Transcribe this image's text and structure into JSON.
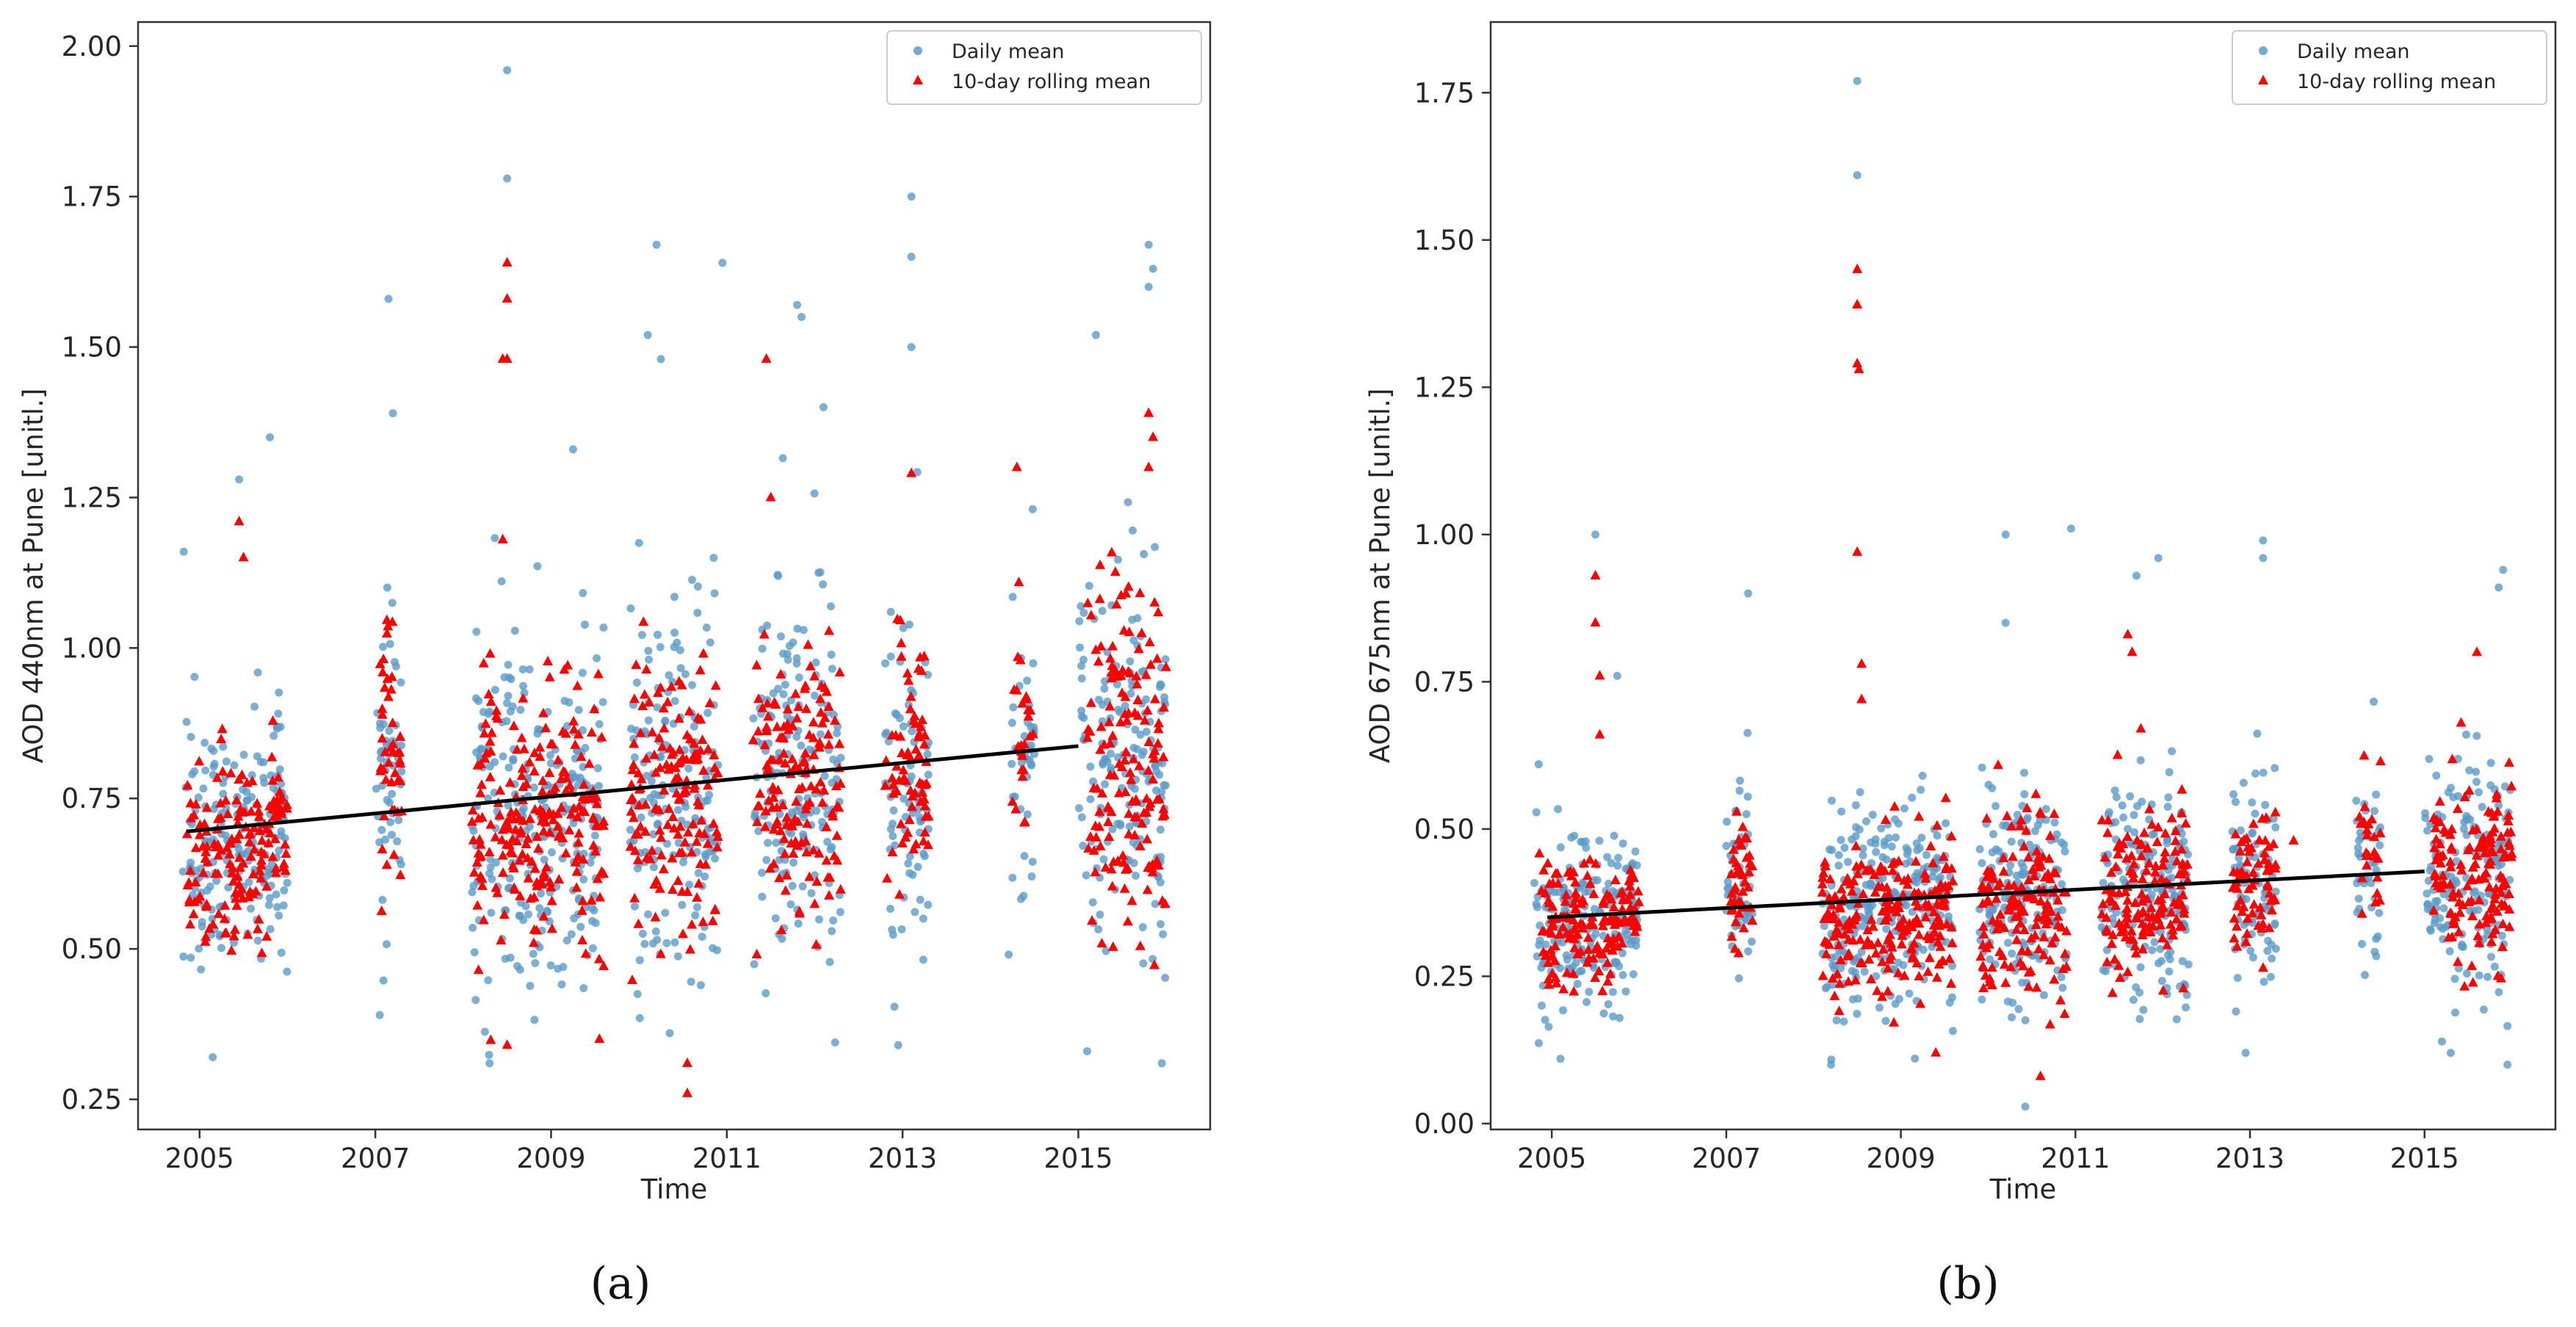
{
  "colors": {
    "daily_mean": "#5b9bc8",
    "rolling_mean": "#ff0000",
    "trend": "#000000",
    "axes": "#333333"
  },
  "chart_data": [
    {
      "type": "scatter",
      "panel_label": "(a)",
      "xlabel": "Time",
      "ylabel": "AOD 440nm at Pune [unitl.]",
      "xlim": [
        2004.3,
        2016.5
      ],
      "ylim": [
        0.2,
        2.04
      ],
      "xticks": [
        2005,
        2007,
        2009,
        2011,
        2013,
        2015
      ],
      "yticks": [
        0.25,
        0.5,
        0.75,
        1.0,
        1.25,
        1.5,
        1.75,
        2.0
      ],
      "ytick_labels": [
        "0.25",
        "0.50",
        "0.75",
        "1.00",
        "1.25",
        "1.50",
        "1.75",
        "2.00"
      ],
      "legend": {
        "position": "top-right",
        "entries": [
          "Daily mean",
          "10-day rolling mean"
        ]
      },
      "trend_line": {
        "x": [
          2004.85,
          2015.0
        ],
        "y": [
          0.695,
          0.837
        ]
      },
      "series": [
        {
          "name": "Daily mean",
          "marker": "circle",
          "clusters": [
            {
              "x": [
                2004.8,
                2005.8
              ],
              "mean": 0.68,
              "spread": 0.14,
              "n": 150
            },
            {
              "x": [
                2005.8,
                2006.0
              ],
              "mean": 0.7,
              "spread": 0.15,
              "n": 40
            },
            {
              "x": [
                2007.0,
                2007.3
              ],
              "mean": 0.82,
              "spread": 0.18,
              "n": 50
            },
            {
              "x": [
                2008.1,
                2008.6
              ],
              "mean": 0.72,
              "spread": 0.2,
              "n": 80
            },
            {
              "x": [
                2008.6,
                2009.6
              ],
              "mean": 0.72,
              "spread": 0.2,
              "n": 170
            },
            {
              "x": [
                2009.9,
                2010.9
              ],
              "mean": 0.75,
              "spread": 0.2,
              "n": 170
            },
            {
              "x": [
                2011.3,
                2012.3
              ],
              "mean": 0.78,
              "spread": 0.2,
              "n": 170
            },
            {
              "x": [
                2012.8,
                2013.3
              ],
              "mean": 0.78,
              "spread": 0.2,
              "n": 80
            },
            {
              "x": [
                2014.2,
                2014.5
              ],
              "mean": 0.82,
              "spread": 0.18,
              "n": 40
            },
            {
              "x": [
                2015.0,
                2016.0
              ],
              "mean": 0.8,
              "spread": 0.22,
              "n": 170
            }
          ],
          "outliers": [
            {
              "x": 2004.82,
              "y": 1.16
            },
            {
              "x": 2005.45,
              "y": 1.28
            },
            {
              "x": 2005.8,
              "y": 1.35
            },
            {
              "x": 2007.15,
              "y": 1.58
            },
            {
              "x": 2007.2,
              "y": 1.39
            },
            {
              "x": 2007.05,
              "y": 0.39
            },
            {
              "x": 2008.5,
              "y": 1.96
            },
            {
              "x": 2008.5,
              "y": 1.78
            },
            {
              "x": 2008.3,
              "y": 0.31
            },
            {
              "x": 2009.25,
              "y": 1.33
            },
            {
              "x": 2010.1,
              "y": 1.52
            },
            {
              "x": 2010.2,
              "y": 1.67
            },
            {
              "x": 2010.25,
              "y": 1.48
            },
            {
              "x": 2010.35,
              "y": 0.36
            },
            {
              "x": 2010.95,
              "y": 1.64
            },
            {
              "x": 2011.8,
              "y": 1.57
            },
            {
              "x": 2011.85,
              "y": 1.55
            },
            {
              "x": 2012.1,
              "y": 1.4
            },
            {
              "x": 2013.1,
              "y": 1.75
            },
            {
              "x": 2013.1,
              "y": 1.65
            },
            {
              "x": 2013.1,
              "y": 1.5
            },
            {
              "x": 2012.95,
              "y": 0.34
            },
            {
              "x": 2015.2,
              "y": 1.52
            },
            {
              "x": 2015.8,
              "y": 1.67
            },
            {
              "x": 2015.85,
              "y": 1.63
            },
            {
              "x": 2015.8,
              "y": 1.6
            },
            {
              "x": 2015.95,
              "y": 0.31
            },
            {
              "x": 2015.1,
              "y": 0.33
            },
            {
              "x": 2005.15,
              "y": 0.32
            }
          ]
        },
        {
          "name": "10-day rolling mean",
          "marker": "triangle",
          "clusters": [
            {
              "x": [
                2004.85,
                2005.8
              ],
              "mean": 0.66,
              "spread": 0.1,
              "n": 130
            },
            {
              "x": [
                2005.8,
                2006.0
              ],
              "mean": 0.72,
              "spread": 0.08,
              "n": 30
            },
            {
              "x": [
                2007.05,
                2007.3
              ],
              "mean": 0.82,
              "spread": 0.14,
              "n": 45
            },
            {
              "x": [
                2008.1,
                2008.6
              ],
              "mean": 0.72,
              "spread": 0.17,
              "n": 70
            },
            {
              "x": [
                2008.6,
                2009.6
              ],
              "mean": 0.72,
              "spread": 0.15,
              "n": 150
            },
            {
              "x": [
                2009.9,
                2010.9
              ],
              "mean": 0.74,
              "spread": 0.16,
              "n": 150
            },
            {
              "x": [
                2011.3,
                2012.3
              ],
              "mean": 0.78,
              "spread": 0.14,
              "n": 150
            },
            {
              "x": [
                2012.8,
                2013.3
              ],
              "mean": 0.8,
              "spread": 0.14,
              "n": 70
            },
            {
              "x": [
                2014.25,
                2014.5
              ],
              "mean": 0.85,
              "spread": 0.12,
              "n": 25
            },
            {
              "x": [
                2015.1,
                2016.0
              ],
              "mean": 0.8,
              "spread": 0.2,
              "n": 150
            }
          ],
          "outliers": [
            {
              "x": 2005.45,
              "y": 1.21
            },
            {
              "x": 2005.5,
              "y": 1.15
            },
            {
              "x": 2008.5,
              "y": 1.64
            },
            {
              "x": 2008.5,
              "y": 1.58
            },
            {
              "x": 2008.45,
              "y": 1.48
            },
            {
              "x": 2008.5,
              "y": 1.48
            },
            {
              "x": 2008.45,
              "y": 1.18
            },
            {
              "x": 2009.55,
              "y": 0.35
            },
            {
              "x": 2010.55,
              "y": 0.31
            },
            {
              "x": 2010.55,
              "y": 0.26
            },
            {
              "x": 2011.45,
              "y": 1.48
            },
            {
              "x": 2011.5,
              "y": 1.25
            },
            {
              "x": 2014.3,
              "y": 1.3
            },
            {
              "x": 2015.8,
              "y": 1.39
            },
            {
              "x": 2015.85,
              "y": 1.35
            },
            {
              "x": 2015.8,
              "y": 1.3
            },
            {
              "x": 2008.5,
              "y": 0.34
            },
            {
              "x": 2013.1,
              "y": 1.29
            }
          ]
        }
      ]
    },
    {
      "type": "scatter",
      "panel_label": "(b)",
      "xlabel": "Time",
      "ylabel": "AOD 675nm at Pune [unitl.]",
      "xlim": [
        2004.3,
        2016.5
      ],
      "ylim": [
        -0.01,
        1.87
      ],
      "xticks": [
        2005,
        2007,
        2009,
        2011,
        2013,
        2015
      ],
      "yticks": [
        0.0,
        0.25,
        0.5,
        0.75,
        1.0,
        1.25,
        1.5,
        1.75
      ],
      "ytick_labels": [
        "0.00",
        "0.25",
        "0.50",
        "0.75",
        "1.00",
        "1.25",
        "1.50",
        "1.75"
      ],
      "legend": {
        "position": "top-right",
        "entries": [
          "Daily mean",
          "10-day rolling mean"
        ]
      },
      "trend_line": {
        "x": [
          2004.95,
          2015.0
        ],
        "y": [
          0.35,
          0.428
        ]
      },
      "series": [
        {
          "name": "Daily mean",
          "marker": "circle",
          "clusters": [
            {
              "x": [
                2004.8,
                2005.8
              ],
              "mean": 0.34,
              "spread": 0.1,
              "n": 150
            },
            {
              "x": [
                2005.8,
                2006.0
              ],
              "mean": 0.37,
              "spread": 0.08,
              "n": 40
            },
            {
              "x": [
                2007.0,
                2007.3
              ],
              "mean": 0.4,
              "spread": 0.1,
              "n": 50
            },
            {
              "x": [
                2008.1,
                2008.6
              ],
              "mean": 0.36,
              "spread": 0.12,
              "n": 80
            },
            {
              "x": [
                2008.6,
                2009.6
              ],
              "mean": 0.37,
              "spread": 0.12,
              "n": 170
            },
            {
              "x": [
                2009.9,
                2010.9
              ],
              "mean": 0.38,
              "spread": 0.13,
              "n": 170
            },
            {
              "x": [
                2011.3,
                2012.3
              ],
              "mean": 0.38,
              "spread": 0.13,
              "n": 170
            },
            {
              "x": [
                2012.8,
                2013.3
              ],
              "mean": 0.4,
              "spread": 0.13,
              "n": 80
            },
            {
              "x": [
                2014.2,
                2014.5
              ],
              "mean": 0.45,
              "spread": 0.12,
              "n": 40
            },
            {
              "x": [
                2015.0,
                2016.0
              ],
              "mean": 0.42,
              "spread": 0.15,
              "n": 170
            }
          ],
          "outliers": [
            {
              "x": 2004.85,
              "y": 0.61
            },
            {
              "x": 2005.5,
              "y": 1.0
            },
            {
              "x": 2005.75,
              "y": 0.76
            },
            {
              "x": 2007.25,
              "y": 0.9
            },
            {
              "x": 2008.5,
              "y": 1.77
            },
            {
              "x": 2008.5,
              "y": 1.61
            },
            {
              "x": 2010.2,
              "y": 1.0
            },
            {
              "x": 2010.2,
              "y": 0.85
            },
            {
              "x": 2010.95,
              "y": 1.01
            },
            {
              "x": 2011.7,
              "y": 0.93
            },
            {
              "x": 2011.95,
              "y": 0.96
            },
            {
              "x": 2013.15,
              "y": 0.99
            },
            {
              "x": 2013.15,
              "y": 0.96
            },
            {
              "x": 2015.9,
              "y": 0.94
            },
            {
              "x": 2015.85,
              "y": 0.91
            },
            {
              "x": 2015.95,
              "y": 0.1
            },
            {
              "x": 2005.1,
              "y": 0.11
            },
            {
              "x": 2008.2,
              "y": 0.1
            },
            {
              "x": 2012.95,
              "y": 0.12
            },
            {
              "x": 2015.3,
              "y": 0.12
            }
          ]
        },
        {
          "name": "10-day rolling mean",
          "marker": "triangle",
          "clusters": [
            {
              "x": [
                2004.85,
                2005.8
              ],
              "mean": 0.33,
              "spread": 0.07,
              "n": 130
            },
            {
              "x": [
                2005.8,
                2006.0
              ],
              "mean": 0.37,
              "spread": 0.05,
              "n": 30
            },
            {
              "x": [
                2007.05,
                2007.3
              ],
              "mean": 0.41,
              "spread": 0.07,
              "n": 45
            },
            {
              "x": [
                2008.1,
                2008.6
              ],
              "mean": 0.35,
              "spread": 0.09,
              "n": 70
            },
            {
              "x": [
                2008.6,
                2009.6
              ],
              "mean": 0.36,
              "spread": 0.09,
              "n": 150
            },
            {
              "x": [
                2009.9,
                2010.9
              ],
              "mean": 0.37,
              "spread": 0.1,
              "n": 150
            },
            {
              "x": [
                2011.3,
                2012.3
              ],
              "mean": 0.38,
              "spread": 0.1,
              "n": 150
            },
            {
              "x": [
                2012.8,
                2013.3
              ],
              "mean": 0.4,
              "spread": 0.1,
              "n": 70
            },
            {
              "x": [
                2014.25,
                2014.5
              ],
              "mean": 0.5,
              "spread": 0.08,
              "n": 25
            },
            {
              "x": [
                2015.1,
                2016.0
              ],
              "mean": 0.42,
              "spread": 0.12,
              "n": 150
            }
          ],
          "outliers": [
            {
              "x": 2005.5,
              "y": 0.93
            },
            {
              "x": 2005.5,
              "y": 0.85
            },
            {
              "x": 2005.55,
              "y": 0.76
            },
            {
              "x": 2005.55,
              "y": 0.66
            },
            {
              "x": 2008.5,
              "y": 1.45
            },
            {
              "x": 2008.5,
              "y": 1.39
            },
            {
              "x": 2008.5,
              "y": 1.29
            },
            {
              "x": 2008.52,
              "y": 1.28
            },
            {
              "x": 2008.5,
              "y": 0.97
            },
            {
              "x": 2008.55,
              "y": 0.78
            },
            {
              "x": 2008.55,
              "y": 0.72
            },
            {
              "x": 2011.6,
              "y": 0.83
            },
            {
              "x": 2011.65,
              "y": 0.8
            },
            {
              "x": 2011.75,
              "y": 0.67
            },
            {
              "x": 2015.6,
              "y": 0.8
            },
            {
              "x": 2010.6,
              "y": 0.08
            },
            {
              "x": 2009.4,
              "y": 0.12
            },
            {
              "x": 2013.5,
              "y": 0.48
            }
          ]
        }
      ]
    }
  ]
}
